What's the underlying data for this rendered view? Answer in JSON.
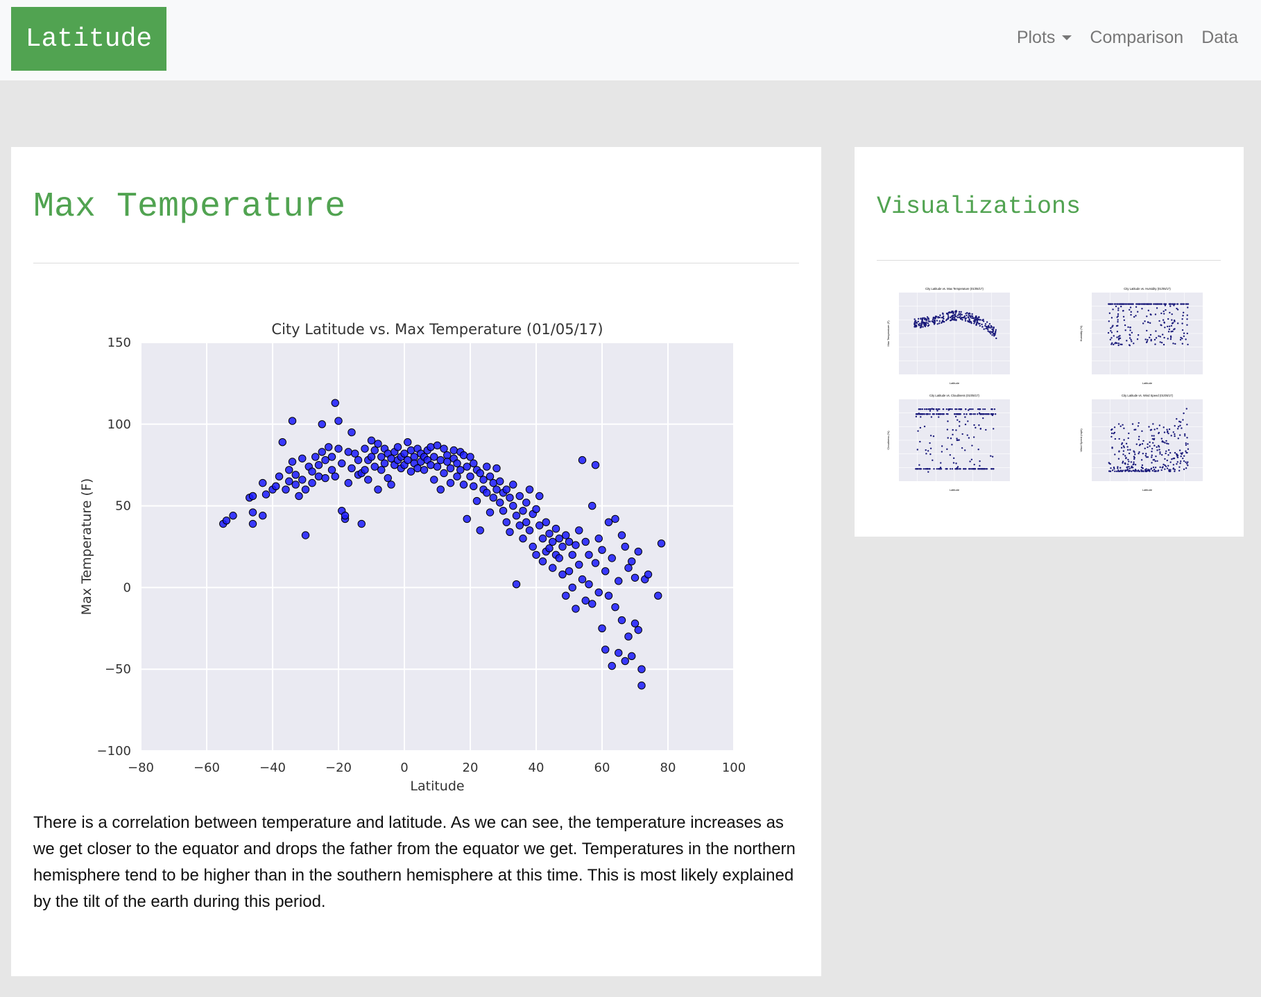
{
  "nav": {
    "brand": "Latitude",
    "links": [
      {
        "label": "Plots",
        "dropdown": true
      },
      {
        "label": "Comparison"
      },
      {
        "label": "Data"
      }
    ]
  },
  "main": {
    "title": "Max Temperature",
    "description": "There is a correlation between temperature and latitude. As we can see, the temperature increases as we get closer to the equator and drops the father from the equator we get. Temperatures in the northern hemisphere tend to be higher than in the southern hemisphere at this time. This is most likely explained by the tilt of the earth during this period."
  },
  "sidebar": {
    "title": "Visualizations",
    "thumbnails": [
      {
        "name": "thumb-max-temperature",
        "title": "City Latitude vs. Max Temperature (01/05/17)",
        "ylabel": "Max Temperature (F)",
        "xlabel": "Latitude"
      },
      {
        "name": "thumb-humidity",
        "title": "City Latitude vs. Humidity (01/05/17)",
        "ylabel": "Humidity (%)",
        "xlabel": "Latitude"
      },
      {
        "name": "thumb-cloudiness",
        "title": "City Latitude vs. Cloudiness (01/05/17)",
        "ylabel": "Cloudiness (%)",
        "xlabel": "Latitude"
      },
      {
        "name": "thumb-wind-speed",
        "title": "City Latitude vs. Wind Speed (01/05/17)",
        "ylabel": "Wind Speed (mph)",
        "xlabel": "Latitude"
      }
    ]
  },
  "colors": {
    "accent": "#51a351",
    "plot_bg": "#eaeaf2",
    "point_fill": "#1a1aff",
    "thumb_point": "#1a1a7a"
  },
  "chart_data": {
    "type": "scatter",
    "title": "City Latitude vs. Max Temperature (01/05/17)",
    "xlabel": "Latitude",
    "ylabel": "Max Temperature (F)",
    "xlim": [
      -80,
      100
    ],
    "ylim": [
      -100,
      150
    ],
    "xticks": [
      -80,
      -60,
      -40,
      -20,
      0,
      20,
      40,
      60,
      80,
      100
    ],
    "yticks": [
      -100,
      -50,
      0,
      50,
      100,
      150
    ],
    "grid": true,
    "points": [
      [
        -55,
        39
      ],
      [
        -54,
        41
      ],
      [
        -52,
        44
      ],
      [
        -47,
        55
      ],
      [
        -46,
        56
      ],
      [
        -46,
        46
      ],
      [
        -46,
        39
      ],
      [
        -43,
        64
      ],
      [
        -43,
        44
      ],
      [
        -42,
        57
      ],
      [
        -40,
        60
      ],
      [
        -39,
        62
      ],
      [
        -38,
        68
      ],
      [
        -37,
        89
      ],
      [
        -36,
        60
      ],
      [
        -35,
        65
      ],
      [
        -35,
        72
      ],
      [
        -34,
        77
      ],
      [
        -34,
        102
      ],
      [
        -33,
        69
      ],
      [
        -33,
        63
      ],
      [
        -32,
        56
      ],
      [
        -31,
        66
      ],
      [
        -31,
        79
      ],
      [
        -30,
        32
      ],
      [
        -30,
        60
      ],
      [
        -29,
        74
      ],
      [
        -28,
        71
      ],
      [
        -28,
        64
      ],
      [
        -27,
        80
      ],
      [
        -26,
        68
      ],
      [
        -26,
        75
      ],
      [
        -25,
        100
      ],
      [
        -25,
        83
      ],
      [
        -24,
        67
      ],
      [
        -24,
        78
      ],
      [
        -23,
        86
      ],
      [
        -22,
        80
      ],
      [
        -22,
        72
      ],
      [
        -21,
        68
      ],
      [
        -21,
        113
      ],
      [
        -20,
        102
      ],
      [
        -20,
        85
      ],
      [
        -19,
        76
      ],
      [
        -19,
        47
      ],
      [
        -18,
        42
      ],
      [
        -18,
        44
      ],
      [
        -17,
        83
      ],
      [
        -17,
        64
      ],
      [
        -16,
        95
      ],
      [
        -16,
        73
      ],
      [
        -15,
        82
      ],
      [
        -14,
        69
      ],
      [
        -14,
        78
      ],
      [
        -13,
        70
      ],
      [
        -13,
        39
      ],
      [
        -12,
        85
      ],
      [
        -12,
        72
      ],
      [
        -11,
        78
      ],
      [
        -11,
        66
      ],
      [
        -10,
        90
      ],
      [
        -10,
        80
      ],
      [
        -9,
        84
      ],
      [
        -9,
        74
      ],
      [
        -8,
        60
      ],
      [
        -8,
        88
      ],
      [
        -7,
        80
      ],
      [
        -7,
        72
      ],
      [
        -6,
        85
      ],
      [
        -6,
        76
      ],
      [
        -5,
        82
      ],
      [
        -5,
        67
      ],
      [
        -4,
        63
      ],
      [
        -4,
        79
      ],
      [
        -3,
        83
      ],
      [
        -3,
        75
      ],
      [
        -2,
        86
      ],
      [
        -2,
        78
      ],
      [
        -1,
        80
      ],
      [
        -1,
        73
      ],
      [
        0,
        82
      ],
      [
        0,
        75
      ],
      [
        1,
        89
      ],
      [
        1,
        78
      ],
      [
        2,
        84
      ],
      [
        2,
        71
      ],
      [
        3,
        80
      ],
      [
        3,
        76
      ],
      [
        4,
        85
      ],
      [
        4,
        73
      ],
      [
        5,
        77
      ],
      [
        5,
        82
      ],
      [
        6,
        80
      ],
      [
        6,
        72
      ],
      [
        7,
        78
      ],
      [
        7,
        84
      ],
      [
        8,
        86
      ],
      [
        8,
        75
      ],
      [
        9,
        80
      ],
      [
        9,
        66
      ],
      [
        10,
        87
      ],
      [
        10,
        74
      ],
      [
        11,
        78
      ],
      [
        11,
        60
      ],
      [
        12,
        85
      ],
      [
        12,
        70
      ],
      [
        13,
        81
      ],
      [
        13,
        77
      ],
      [
        14,
        64
      ],
      [
        14,
        73
      ],
      [
        15,
        84
      ],
      [
        15,
        79
      ],
      [
        16,
        76
      ],
      [
        16,
        68
      ],
      [
        17,
        83
      ],
      [
        17,
        72
      ],
      [
        18,
        81
      ],
      [
        18,
        63
      ],
      [
        19,
        42
      ],
      [
        19,
        74
      ],
      [
        20,
        80
      ],
      [
        20,
        68
      ],
      [
        21,
        76
      ],
      [
        21,
        62
      ],
      [
        22,
        72
      ],
      [
        22,
        53
      ],
      [
        23,
        35
      ],
      [
        23,
        70
      ],
      [
        24,
        66
      ],
      [
        24,
        60
      ],
      [
        25,
        74
      ],
      [
        25,
        58
      ],
      [
        26,
        68
      ],
      [
        26,
        46
      ],
      [
        27,
        64
      ],
      [
        27,
        55
      ],
      [
        28,
        73
      ],
      [
        28,
        60
      ],
      [
        29,
        52
      ],
      [
        29,
        65
      ],
      [
        30,
        47
      ],
      [
        30,
        58
      ],
      [
        31,
        60
      ],
      [
        31,
        40
      ],
      [
        32,
        55
      ],
      [
        32,
        34
      ],
      [
        33,
        50
      ],
      [
        33,
        63
      ],
      [
        34,
        44
      ],
      [
        34,
        2
      ],
      [
        35,
        56
      ],
      [
        35,
        38
      ],
      [
        36,
        47
      ],
      [
        36,
        30
      ],
      [
        37,
        52
      ],
      [
        37,
        40
      ],
      [
        38,
        35
      ],
      [
        38,
        60
      ],
      [
        39,
        45
      ],
      [
        39,
        25
      ],
      [
        40,
        48
      ],
      [
        40,
        20
      ],
      [
        41,
        38
      ],
      [
        41,
        56
      ],
      [
        42,
        30
      ],
      [
        42,
        16
      ],
      [
        43,
        40
      ],
      [
        43,
        22
      ],
      [
        44,
        24
      ],
      [
        44,
        33
      ],
      [
        45,
        12
      ],
      [
        45,
        28
      ],
      [
        46,
        36
      ],
      [
        46,
        20
      ],
      [
        47,
        18
      ],
      [
        47,
        30
      ],
      [
        48,
        8
      ],
      [
        48,
        25
      ],
      [
        49,
        -5
      ],
      [
        49,
        32
      ],
      [
        50,
        28
      ],
      [
        50,
        10
      ],
      [
        51,
        20
      ],
      [
        51,
        0
      ],
      [
        52,
        -13
      ],
      [
        52,
        26
      ],
      [
        53,
        35
      ],
      [
        53,
        14
      ],
      [
        54,
        78
      ],
      [
        54,
        5
      ],
      [
        55,
        28
      ],
      [
        55,
        -8
      ],
      [
        56,
        20
      ],
      [
        56,
        2
      ],
      [
        57,
        50
      ],
      [
        57,
        -10
      ],
      [
        58,
        75
      ],
      [
        58,
        15
      ],
      [
        59,
        30
      ],
      [
        59,
        -3
      ],
      [
        60,
        -25
      ],
      [
        60,
        23
      ],
      [
        61,
        10
      ],
      [
        61,
        -38
      ],
      [
        62,
        40
      ],
      [
        62,
        -5
      ],
      [
        63,
        -48
      ],
      [
        63,
        18
      ],
      [
        64,
        42
      ],
      [
        64,
        -12
      ],
      [
        65,
        4
      ],
      [
        65,
        -40
      ],
      [
        66,
        32
      ],
      [
        66,
        -20
      ],
      [
        67,
        25
      ],
      [
        67,
        -45
      ],
      [
        68,
        12
      ],
      [
        68,
        -30
      ],
      [
        69,
        -42
      ],
      [
        69,
        16
      ],
      [
        70,
        -22
      ],
      [
        70,
        6
      ],
      [
        71,
        -26
      ],
      [
        71,
        22
      ],
      [
        72,
        -50
      ],
      [
        72,
        -60
      ],
      [
        73,
        5
      ],
      [
        74,
        8
      ],
      [
        77,
        -5
      ],
      [
        78,
        27
      ]
    ]
  }
}
